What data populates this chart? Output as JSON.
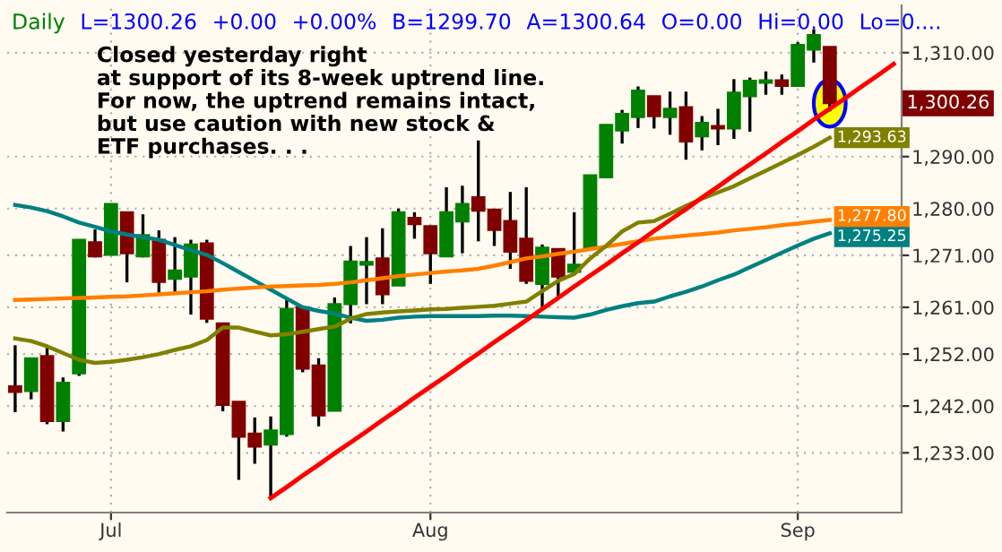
{
  "chart_data": {
    "type": "candlestick",
    "title": "Daily",
    "categories": [
      null,
      null,
      null,
      null,
      null,
      null,
      "Jul",
      null,
      null,
      null,
      null,
      null,
      null,
      null,
      null,
      null,
      null,
      null,
      null,
      null,
      null,
      null,
      null,
      null,
      null,
      null,
      "Aug",
      null,
      null,
      null,
      null,
      null,
      null,
      null,
      null,
      null,
      null,
      null,
      null,
      null,
      null,
      null,
      null,
      null,
      null,
      null,
      null,
      null,
      null,
      "Sep",
      null,
      null,
      null,
      null,
      null,
      null
    ],
    "ohlc": [
      [
        1245.8,
        1253.7,
        1240.8,
        1244.7
      ],
      [
        1244.9,
        1251.2,
        1243.3,
        1251.2
      ],
      [
        1251.6,
        1253.5,
        1238.5,
        1239.1
      ],
      [
        1239.1,
        1247.5,
        1237.1,
        1246.5
      ],
      [
        1248.3,
        1274.0,
        1247.8,
        1274.0
      ],
      [
        1273.5,
        1276.0,
        1270.6,
        1270.8
      ],
      [
        1271.1,
        1280.9,
        1271.1,
        1280.9
      ],
      [
        1279.3,
        1279.3,
        1265.8,
        1271.4
      ],
      [
        1270.8,
        1278.9,
        1270.6,
        1274.9
      ],
      [
        1274.0,
        1275.8,
        1263.8,
        1265.9
      ],
      [
        1266.5,
        1274.5,
        1263.6,
        1268.1
      ],
      [
        1266.9,
        1274.0,
        1259.6,
        1273.1
      ],
      [
        1273.3,
        1274.0,
        1258.0,
        1258.8
      ],
      [
        1257.9,
        1257.9,
        1241.0,
        1242.2
      ],
      [
        1242.8,
        1242.8,
        1227.8,
        1236.1
      ],
      [
        1236.7,
        1239.8,
        1230.9,
        1234.2
      ],
      [
        1234.6,
        1240.0,
        1224.1,
        1237.3
      ],
      [
        1236.6,
        1262.4,
        1236.1,
        1260.7
      ],
      [
        1261.0,
        1261.0,
        1248.5,
        1249.2
      ],
      [
        1249.8,
        1251.2,
        1238.1,
        1240.2
      ],
      [
        1241.1,
        1262.9,
        1241.1,
        1261.6
      ],
      [
        1261.6,
        1272.8,
        1257.9,
        1269.8
      ],
      [
        1269.2,
        1274.5,
        1261.6,
        1269.7
      ],
      [
        1270.4,
        1276.2,
        1261.6,
        1263.5
      ],
      [
        1265.2,
        1280.0,
        1265.2,
        1279.3
      ],
      [
        1278.2,
        1279.3,
        1274.2,
        1277.0
      ],
      [
        1276.6,
        1276.6,
        1265.5,
        1271.4
      ],
      [
        1270.8,
        1284.1,
        1270.8,
        1279.3
      ],
      [
        1277.5,
        1284.4,
        1271.4,
        1280.9
      ],
      [
        1282.2,
        1293.1,
        1273.7,
        1279.6
      ],
      [
        1279.8,
        1279.8,
        1272.8,
        1275.9
      ],
      [
        1277.6,
        1283.2,
        1268.4,
        1271.7
      ],
      [
        1274.2,
        1284.1,
        1265.5,
        1266.1
      ],
      [
        1265.5,
        1273.1,
        1261.0,
        1272.5
      ],
      [
        1272.2,
        1272.2,
        1262.7,
        1266.9
      ],
      [
        1267.8,
        1279.3,
        1267.8,
        1269.2
      ],
      [
        1272.5,
        1286.4,
        1272.5,
        1286.4
      ],
      [
        1286.0,
        1296.1,
        1286.0,
        1296.1
      ],
      [
        1295.0,
        1299.0,
        1292.5,
        1298.2
      ],
      [
        1297.6,
        1303.5,
        1295.5,
        1302.7
      ],
      [
        1301.6,
        1301.6,
        1295.4,
        1297.8
      ],
      [
        1297.6,
        1302.5,
        1294.2,
        1299.2
      ],
      [
        1299.5,
        1302.5,
        1289.4,
        1292.9
      ],
      [
        1293.9,
        1297.8,
        1291.2,
        1296.5
      ],
      [
        1295.9,
        1299.2,
        1292.2,
        1295.4
      ],
      [
        1295.4,
        1304.9,
        1293.4,
        1302.3
      ],
      [
        1301.6,
        1305.2,
        1294.8,
        1304.6
      ],
      [
        1304.2,
        1306.4,
        1301.9,
        1304.7
      ],
      [
        1304.7,
        1305.8,
        1301.9,
        1303.6
      ],
      [
        1303.6,
        1312.0,
        1303.6,
        1311.5
      ],
      [
        1310.6,
        1314.5,
        1308.1,
        1313.4
      ],
      [
        1311.1,
        1311.1,
        1298.7,
        1300.26
      ],
      null,
      null,
      null,
      null
    ],
    "value_labels": [
      null,
      null,
      null,
      null,
      null,
      null,
      null,
      null,
      null,
      null,
      null,
      null,
      null,
      null,
      null,
      null,
      null,
      null,
      null,
      null,
      null,
      null,
      null,
      null,
      null,
      null,
      null,
      null,
      null,
      null,
      null,
      null,
      null,
      null,
      null,
      null,
      null,
      null,
      null,
      null,
      null,
      null,
      null,
      null,
      null,
      null,
      null,
      null,
      null,
      null,
      null,
      "1,300.26",
      null,
      null,
      null,
      null
    ],
    "colors": [
      "#800000",
      "#008000",
      "#800000",
      "#008000",
      "#008000",
      "#800000",
      "#008000",
      "#800000",
      "#008000",
      "#800000",
      "#008000",
      "#008000",
      "#800000",
      "#800000",
      "#800000",
      "#800000",
      "#008000",
      "#008000",
      "#800000",
      "#800000",
      "#008000",
      "#008000",
      "#008000",
      "#800000",
      "#008000",
      "#800000",
      "#800000",
      "#008000",
      "#008000",
      "#800000",
      "#800000",
      "#800000",
      "#800000",
      "#008000",
      "#800000",
      "#008000",
      "#008000",
      "#008000",
      "#008000",
      "#008000",
      "#800000",
      "#008000",
      "#800000",
      "#008000",
      "#800000",
      "#008000",
      "#008000",
      "#008000",
      "#800000",
      "#008000",
      "#008000",
      "#800000",
      null,
      null,
      null,
      null
    ],
    "series": [
      {
        "type": "line",
        "color": "#008080",
        "values": [
          1280.7,
          1280.2,
          1279.5,
          1278.5,
          1277.3,
          1276.5,
          1275.6,
          1275.0,
          1274.5,
          1274.0,
          1273.0,
          1272.0,
          1271.1,
          1269.5,
          1267.8,
          1266.1,
          1264.4,
          1262.7,
          1261.0,
          1260.3,
          1259.8,
          1259.0,
          1258.4,
          1258.6,
          1259.0,
          1259.2,
          1259.3,
          1259.3,
          1259.3,
          1259.3,
          1259.4,
          1259.4,
          1259.3,
          1259.2,
          1259.1,
          1259.0,
          1259.6,
          1260.5,
          1261.2,
          1261.8,
          1262.1,
          1263.1,
          1264.0,
          1265.0,
          1266.2,
          1267.3,
          1268.7,
          1270.1,
          1271.5,
          1272.9,
          1274.2,
          1275.25,
          null,
          null,
          null,
          null
        ],
        "value_labels": [
          null,
          null,
          null,
          null,
          null,
          null,
          null,
          null,
          null,
          null,
          null,
          null,
          null,
          null,
          null,
          null,
          null,
          null,
          null,
          null,
          null,
          null,
          null,
          null,
          null,
          null,
          null,
          null,
          null,
          null,
          null,
          null,
          null,
          null,
          null,
          null,
          null,
          null,
          null,
          null,
          null,
          null,
          null,
          null,
          null,
          null,
          null,
          null,
          null,
          null,
          null,
          "1,275.25",
          null,
          null,
          null,
          null
        ]
      },
      {
        "type": "line",
        "color": "#ff8000",
        "values": [
          1262.4,
          1262.5,
          1262.6,
          1262.7,
          1262.8,
          1262.9,
          1263.0,
          1263.1,
          1263.3,
          1263.5,
          1263.7,
          1263.9,
          1264.1,
          1264.4,
          1264.6,
          1264.8,
          1265.0,
          1265.1,
          1265.2,
          1265.3,
          1265.5,
          1265.8,
          1266.2,
          1266.6,
          1267.0,
          1267.3,
          1267.6,
          1267.9,
          1268.1,
          1268.4,
          1269.0,
          1269.7,
          1270.4,
          1270.8,
          1271.3,
          1271.7,
          1272.2,
          1272.7,
          1273.2,
          1273.7,
          1274.2,
          1274.5,
          1274.8,
          1275.1,
          1275.4,
          1275.8,
          1276.1,
          1276.4,
          1276.8,
          1277.1,
          1277.5,
          1277.8,
          null,
          null,
          null,
          null
        ],
        "value_labels": [
          null,
          null,
          null,
          null,
          null,
          null,
          null,
          null,
          null,
          null,
          null,
          null,
          null,
          null,
          null,
          null,
          null,
          null,
          null,
          null,
          null,
          null,
          null,
          null,
          null,
          null,
          null,
          null,
          null,
          null,
          null,
          null,
          null,
          null,
          null,
          null,
          null,
          null,
          null,
          null,
          null,
          null,
          null,
          null,
          null,
          null,
          null,
          null,
          null,
          null,
          null,
          "1,277.80",
          null,
          null,
          null,
          null
        ]
      },
      {
        "type": "line",
        "color": "#808000",
        "values": [
          1255.0,
          1254.5,
          1253.5,
          1252.2,
          1250.9,
          1250.3,
          1250.5,
          1250.9,
          1251.4,
          1252.0,
          1252.8,
          1253.5,
          1254.7,
          1257.1,
          1257.1,
          1256.3,
          1255.6,
          1255.8,
          1256.3,
          1256.8,
          1257.3,
          1258.8,
          1259.7,
          1260.0,
          1260.2,
          1260.4,
          1260.6,
          1260.7,
          1260.9,
          1261.1,
          1261.3,
          1261.7,
          1262.1,
          1264.1,
          1266.1,
          1267.4,
          1270.4,
          1272.8,
          1275.6,
          1277.3,
          1277.6,
          1279.0,
          1280.5,
          1281.9,
          1283.1,
          1284.3,
          1285.8,
          1287.3,
          1288.8,
          1290.3,
          1291.9,
          1293.63,
          null,
          null,
          null,
          null
        ],
        "value_labels": [
          null,
          null,
          null,
          null,
          null,
          null,
          null,
          null,
          null,
          null,
          null,
          null,
          null,
          null,
          null,
          null,
          null,
          null,
          null,
          null,
          null,
          null,
          null,
          null,
          null,
          null,
          null,
          null,
          null,
          null,
          null,
          null,
          null,
          null,
          null,
          null,
          null,
          null,
          null,
          null,
          null,
          null,
          null,
          null,
          null,
          null,
          null,
          null,
          null,
          null,
          null,
          "1,293.63",
          null,
          null,
          null,
          null
        ]
      },
      {
        "type": "line",
        "color": "#ff0000",
        "values": [
          null,
          null,
          null,
          null,
          null,
          null,
          null,
          null,
          null,
          null,
          null,
          null,
          null,
          null,
          null,
          null,
          1224.3,
          1226.4,
          1228.6,
          1230.7,
          1232.9,
          1235.0,
          1237.1,
          1239.3,
          1241.4,
          1243.6,
          1245.7,
          1247.8,
          1250.0,
          1252.1,
          1254.3,
          1256.4,
          1258.5,
          1260.7,
          1262.8,
          1265.0,
          1267.1,
          1269.2,
          1271.4,
          1273.5,
          1275.7,
          1277.8,
          1279.9,
          1282.1,
          1284.2,
          1286.4,
          1288.5,
          1290.6,
          1292.8,
          1294.9,
          1297.1,
          1299.2,
          1301.3,
          1303.5,
          1305.6,
          1307.8
        ]
      }
    ],
    "ylim": [
      1221.5,
      1319.1
    ],
    "yticks": [
      {
        "value": 1233,
        "label": "1,233.00"
      },
      {
        "value": 1242,
        "label": "1,242.00"
      },
      {
        "value": 1252,
        "label": "1,252.00"
      },
      {
        "value": 1261,
        "label": "1,261.00"
      },
      {
        "value": 1271,
        "label": "1,271.00"
      },
      {
        "value": 1280,
        "label": "1,280.00"
      },
      {
        "value": 1290,
        "label": "1,290.00"
      },
      {
        "value": 1310,
        "label": "1,310.00"
      }
    ],
    "grid": true,
    "annotations": [
      "Closed yesterday right\nat support of its 8-week uptrend line.\nFor now, the uptrend remains intact,\nbut use caution with new stock &\nETF purchases. . .",
      "L=1300.26",
      "+0.00",
      "+0.00%",
      "B=1299.70",
      "A=1300.64",
      "O=0.00",
      "Hi=0.00",
      "Lo=0...."
    ]
  }
}
